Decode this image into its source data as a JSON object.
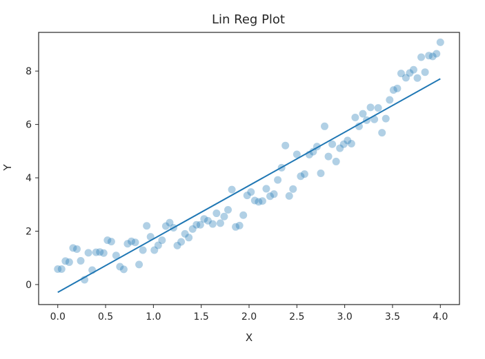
{
  "chart_data": {
    "type": "scatter",
    "title": "Lin Reg Plot",
    "xlabel": "X",
    "ylabel": "Y",
    "xlim": [
      -0.2,
      4.2
    ],
    "ylim": [
      -0.75,
      9.45
    ],
    "x_ticks": [
      "0.0",
      "0.5",
      "1.0",
      "1.5",
      "2.0",
      "2.5",
      "3.0",
      "3.5",
      "4.0"
    ],
    "y_ticks": [
      "0",
      "2",
      "4",
      "6",
      "8"
    ],
    "grid": false,
    "legend": "none",
    "series": [
      {
        "kind": "scatter",
        "color": "#1f77b4",
        "alpha": 0.35,
        "points": [
          [
            0.0,
            0.58
          ],
          [
            0.04,
            0.58
          ],
          [
            0.08,
            0.88
          ],
          [
            0.12,
            0.84
          ],
          [
            0.16,
            1.37
          ],
          [
            0.2,
            1.33
          ],
          [
            0.24,
            0.89
          ],
          [
            0.28,
            0.18
          ],
          [
            0.32,
            1.19
          ],
          [
            0.36,
            0.54
          ],
          [
            0.4,
            1.21
          ],
          [
            0.44,
            1.22
          ],
          [
            0.48,
            1.18
          ],
          [
            0.52,
            1.66
          ],
          [
            0.56,
            1.61
          ],
          [
            0.61,
            1.09
          ],
          [
            0.65,
            0.67
          ],
          [
            0.69,
            0.57
          ],
          [
            0.73,
            1.53
          ],
          [
            0.77,
            1.62
          ],
          [
            0.81,
            1.58
          ],
          [
            0.85,
            0.75
          ],
          [
            0.89,
            1.29
          ],
          [
            0.93,
            2.2
          ],
          [
            0.97,
            1.79
          ],
          [
            1.01,
            1.29
          ],
          [
            1.05,
            1.47
          ],
          [
            1.09,
            1.66
          ],
          [
            1.13,
            2.19
          ],
          [
            1.17,
            2.32
          ],
          [
            1.21,
            2.13
          ],
          [
            1.25,
            1.46
          ],
          [
            1.29,
            1.6
          ],
          [
            1.33,
            1.9
          ],
          [
            1.37,
            1.76
          ],
          [
            1.41,
            2.08
          ],
          [
            1.45,
            2.24
          ],
          [
            1.49,
            2.24
          ],
          [
            1.53,
            2.46
          ],
          [
            1.57,
            2.39
          ],
          [
            1.62,
            2.27
          ],
          [
            1.66,
            2.67
          ],
          [
            1.7,
            2.3
          ],
          [
            1.74,
            2.55
          ],
          [
            1.78,
            2.8
          ],
          [
            1.82,
            3.56
          ],
          [
            1.86,
            2.16
          ],
          [
            1.9,
            2.21
          ],
          [
            1.94,
            2.6
          ],
          [
            1.98,
            3.34
          ],
          [
            2.02,
            3.47
          ],
          [
            2.06,
            3.15
          ],
          [
            2.1,
            3.1
          ],
          [
            2.14,
            3.13
          ],
          [
            2.18,
            3.59
          ],
          [
            2.22,
            3.31
          ],
          [
            2.26,
            3.39
          ],
          [
            2.3,
            3.92
          ],
          [
            2.34,
            4.38
          ],
          [
            2.38,
            5.21
          ],
          [
            2.42,
            3.32
          ],
          [
            2.46,
            3.58
          ],
          [
            2.5,
            4.88
          ],
          [
            2.54,
            4.06
          ],
          [
            2.58,
            4.14
          ],
          [
            2.63,
            4.87
          ],
          [
            2.67,
            4.98
          ],
          [
            2.71,
            5.17
          ],
          [
            2.75,
            4.17
          ],
          [
            2.79,
            5.93
          ],
          [
            2.83,
            4.8
          ],
          [
            2.87,
            5.26
          ],
          [
            2.91,
            4.61
          ],
          [
            2.95,
            5.11
          ],
          [
            2.99,
            5.26
          ],
          [
            3.03,
            5.4
          ],
          [
            3.07,
            5.28
          ],
          [
            3.11,
            6.26
          ],
          [
            3.15,
            5.93
          ],
          [
            3.19,
            6.4
          ],
          [
            3.23,
            6.16
          ],
          [
            3.27,
            6.64
          ],
          [
            3.31,
            6.19
          ],
          [
            3.35,
            6.62
          ],
          [
            3.39,
            5.69
          ],
          [
            3.43,
            6.22
          ],
          [
            3.47,
            6.92
          ],
          [
            3.51,
            7.29
          ],
          [
            3.55,
            7.35
          ],
          [
            3.59,
            7.91
          ],
          [
            3.64,
            7.75
          ],
          [
            3.68,
            7.93
          ],
          [
            3.72,
            8.05
          ],
          [
            3.76,
            7.74
          ],
          [
            3.8,
            8.52
          ],
          [
            3.84,
            7.96
          ],
          [
            3.88,
            8.58
          ],
          [
            3.92,
            8.55
          ],
          [
            3.96,
            8.65
          ],
          [
            4.0,
            9.08
          ]
        ]
      },
      {
        "kind": "line",
        "color": "#1f77b4",
        "x": [
          0.0,
          4.0
        ],
        "y": [
          -0.29,
          7.71
        ]
      }
    ]
  }
}
